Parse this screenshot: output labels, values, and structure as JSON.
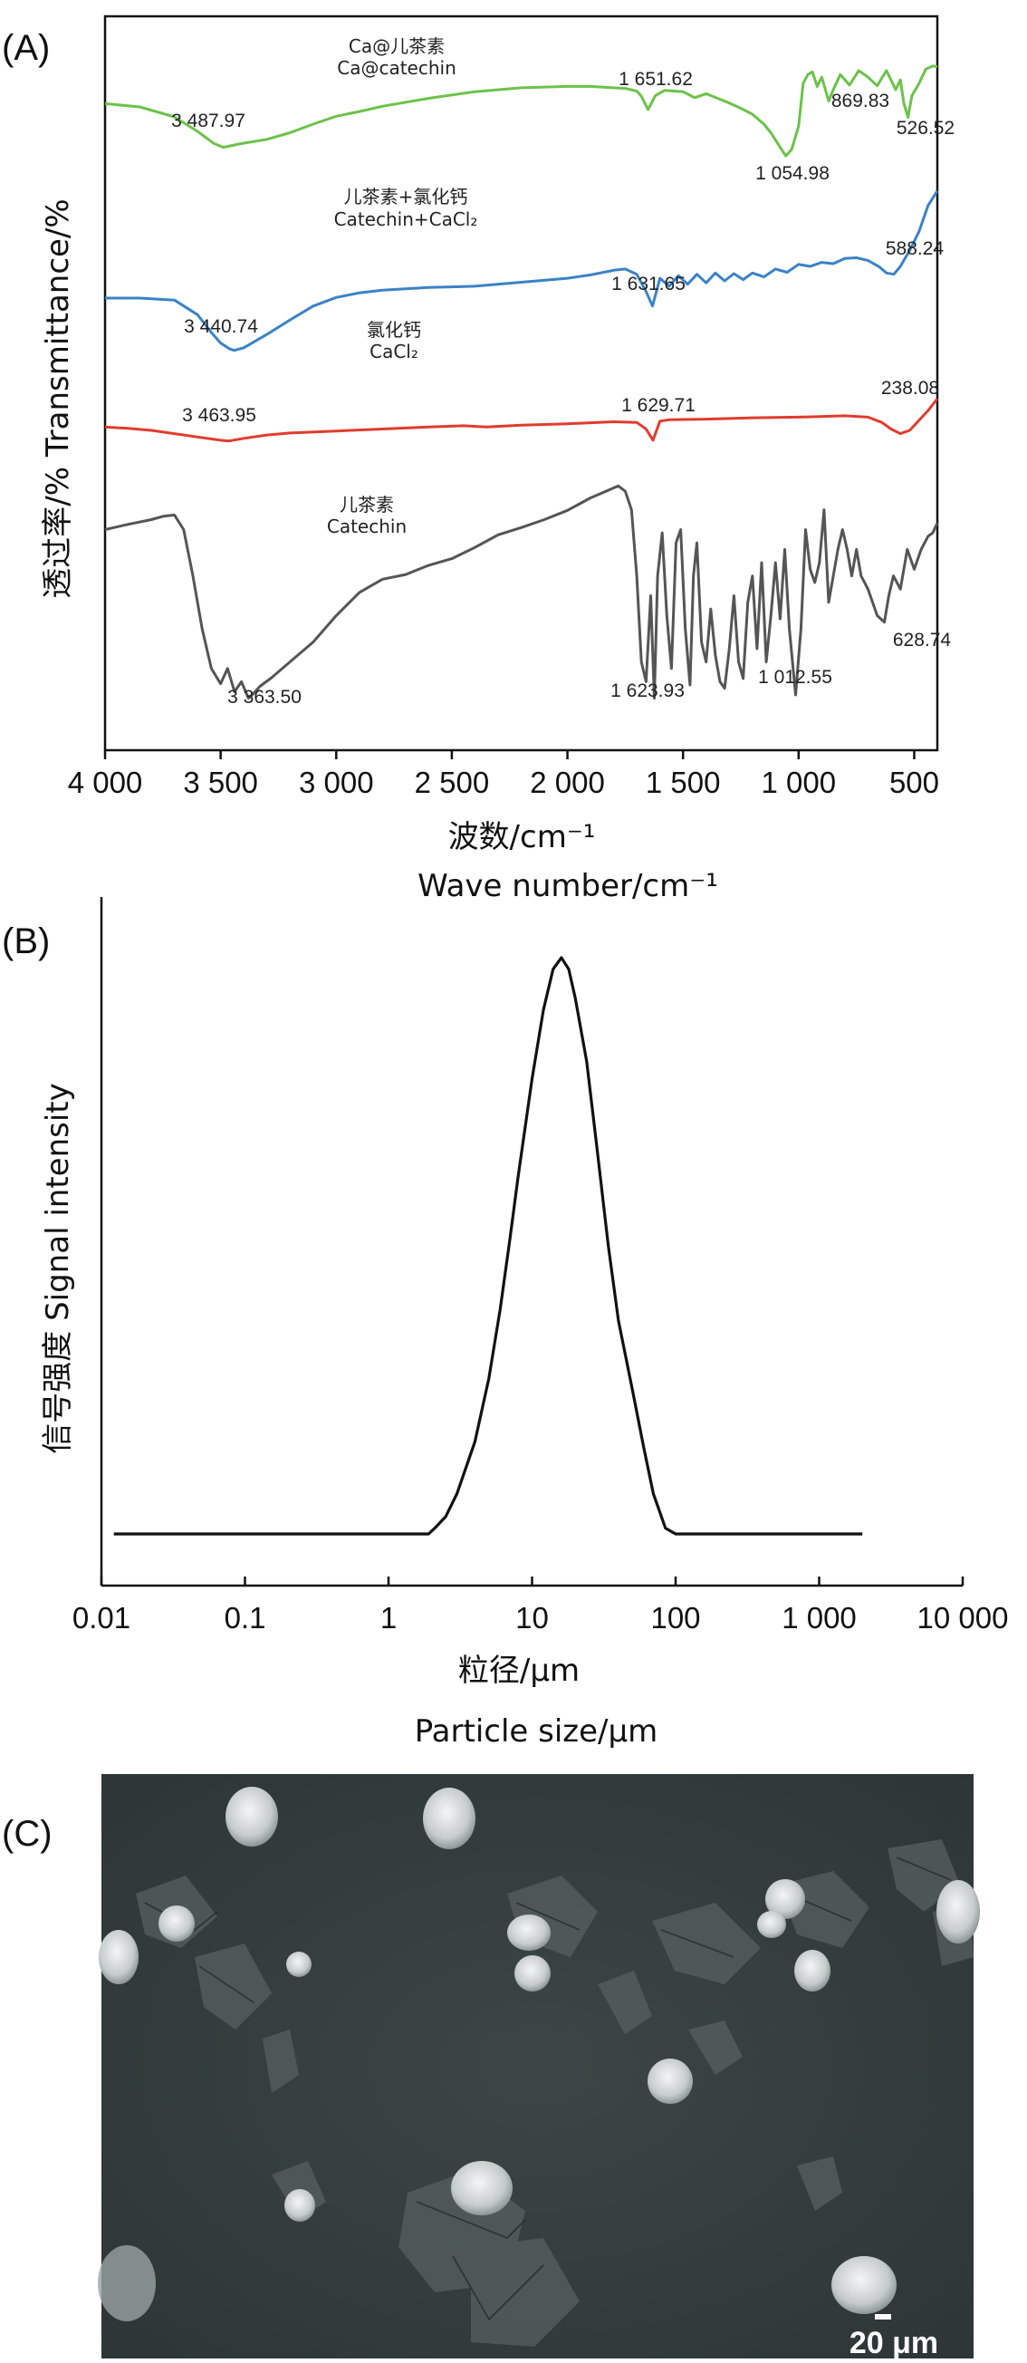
{
  "panels": {
    "a": "(A)",
    "b": "(B)",
    "c": "(C)"
  },
  "chart_data": [
    {
      "type": "line",
      "panel": "(A)",
      "xlabel_cn": "波数/cm⁻¹",
      "xlabel_en": "Wave number/cm⁻¹",
      "ylabel": "透过率/% Transmittance/%",
      "xlim": [
        4000,
        400
      ],
      "x_ticks": [
        {
          "v": 4000,
          "label": "4 000"
        },
        {
          "v": 3500,
          "label": "3 500"
        },
        {
          "v": 3000,
          "label": "3 000"
        },
        {
          "v": 2500,
          "label": "2 500"
        },
        {
          "v": 2000,
          "label": "2 000"
        },
        {
          "v": 1500,
          "label": "1 500"
        },
        {
          "v": 1000,
          "label": "1 000"
        },
        {
          "v": 500,
          "label": "500"
        }
      ],
      "grid": false,
      "series": [
        {
          "name_cn": "Ca@儿茶素",
          "name_en": "Ca@catechin",
          "color": "#6cc24a",
          "x": [
            4000,
            3850,
            3700,
            3600,
            3530,
            3488,
            3420,
            3300,
            3200,
            3100,
            3000,
            2900,
            2800,
            2600,
            2400,
            2200,
            2000,
            1900,
            1800,
            1750,
            1700,
            1680,
            1651,
            1620,
            1580,
            1500,
            1450,
            1400,
            1350,
            1300,
            1250,
            1200,
            1150,
            1120,
            1080,
            1055,
            1030,
            1000,
            980,
            960,
            940,
            920,
            900,
            870,
            850,
            820,
            780,
            740,
            700,
            660,
            620,
            580,
            560,
            545,
            527,
            510,
            480,
            450,
            420,
            400
          ],
          "y": [
            -0.6,
            -1.1,
            -2.6,
            -4.8,
            -6.6,
            -7.2,
            -6.7,
            -6.0,
            -5.0,
            -3.7,
            -2.5,
            -1.8,
            -1.0,
            0.2,
            1.2,
            1.8,
            2.0,
            2.0,
            1.8,
            1.7,
            1.3,
            0.5,
            -1.5,
            0.6,
            1.4,
            1.2,
            0.3,
            0.9,
            0.2,
            -0.5,
            -1.3,
            -2.2,
            -3.7,
            -5.0,
            -7.2,
            -8.5,
            -7.5,
            -4.0,
            2.5,
            3.8,
            4.2,
            2.0,
            3.4,
            -0.2,
            1.5,
            3.8,
            2.2,
            4.4,
            3.4,
            2.1,
            4.4,
            1.5,
            3.0,
            -0.5,
            -2.7,
            0.6,
            2.4,
            4.6,
            5.1,
            5.0
          ],
          "peaks": [
            {
              "x": 3488,
              "label": "3 487.97"
            },
            {
              "x": 1651,
              "label": "1 651.62"
            },
            {
              "x": 1055,
              "label": "1 054.98"
            },
            {
              "x": 870,
              "label": "869.83"
            },
            {
              "x": 527,
              "label": "526.52"
            }
          ]
        },
        {
          "name_cn": "儿茶素+氯化钙",
          "name_en": "Catechin+CaCl₂",
          "color": "#3b82c6",
          "x": [
            4000,
            3850,
            3700,
            3600,
            3540,
            3500,
            3460,
            3441,
            3400,
            3300,
            3200,
            3100,
            3000,
            2900,
            2800,
            2600,
            2400,
            2200,
            2000,
            1900,
            1800,
            1750,
            1700,
            1660,
            1632,
            1600,
            1560,
            1520,
            1480,
            1440,
            1400,
            1360,
            1320,
            1280,
            1240,
            1200,
            1150,
            1100,
            1050,
            1000,
            950,
            900,
            850,
            800,
            750,
            700,
            650,
            620,
            588,
            560,
            520,
            480,
            440,
            400
          ],
          "y": [
            -30.0,
            -30.0,
            -30.3,
            -32.5,
            -35.2,
            -36.8,
            -37.7,
            -37.9,
            -37.5,
            -35.5,
            -33.3,
            -31.2,
            -29.9,
            -29.2,
            -28.8,
            -28.4,
            -28.2,
            -27.6,
            -27.0,
            -26.5,
            -25.8,
            -25.6,
            -26.4,
            -29.0,
            -31.2,
            -27.0,
            -28.2,
            -26.6,
            -27.9,
            -26.4,
            -27.7,
            -26.2,
            -27.4,
            -26.3,
            -27.2,
            -26.2,
            -26.8,
            -25.6,
            -26.1,
            -24.9,
            -25.2,
            -24.6,
            -24.8,
            -24.0,
            -23.9,
            -24.3,
            -25.3,
            -26.2,
            -26.4,
            -25.2,
            -22.8,
            -20.0,
            -16.0,
            -13.8
          ],
          "peaks": [
            {
              "x": 3441,
              "label": "3 440.74"
            },
            {
              "x": 1632,
              "label": "1 631.65"
            },
            {
              "x": 588,
              "label": "588.24"
            }
          ]
        },
        {
          "name_cn": "氯化钙",
          "name_en": "CaCl₂",
          "color": "#e03c2e",
          "x": [
            4000,
            3900,
            3800,
            3700,
            3600,
            3500,
            3464,
            3400,
            3300,
            3200,
            3000,
            2800,
            2600,
            2450,
            2350,
            2200,
            2000,
            1800,
            1700,
            1660,
            1630,
            1600,
            1560,
            1400,
            1200,
            1000,
            800,
            700,
            640,
            600,
            560,
            520,
            480,
            440,
            400
          ],
          "y": [
            -49.5,
            -49.7,
            -50.0,
            -50.5,
            -51.0,
            -51.5,
            -51.6,
            -51.2,
            -50.7,
            -50.4,
            -50.1,
            -49.8,
            -49.5,
            -49.3,
            -49.5,
            -49.2,
            -49.0,
            -48.7,
            -48.8,
            -49.8,
            -51.5,
            -48.6,
            -48.4,
            -48.3,
            -48.1,
            -48.0,
            -47.8,
            -48.0,
            -48.8,
            -49.8,
            -50.5,
            -50.0,
            -48.5,
            -47.0,
            -45.2
          ],
          "peaks": [
            {
              "x": 3464,
              "label": "3 463.95"
            },
            {
              "x": 1630,
              "label": "1 629.71"
            },
            {
              "x": 238,
              "label": "238.08"
            }
          ]
        },
        {
          "name_cn": "儿茶素",
          "name_en": "Catechin",
          "color": "#555555",
          "x": [
            4000,
            3900,
            3800,
            3750,
            3700,
            3660,
            3620,
            3580,
            3540,
            3500,
            3470,
            3440,
            3410,
            3380,
            3364,
            3330,
            3280,
            3200,
            3100,
            3000,
            2900,
            2800,
            2700,
            2600,
            2500,
            2400,
            2300,
            2200,
            2100,
            2000,
            1900,
            1820,
            1780,
            1750,
            1723,
            1700,
            1680,
            1660,
            1640,
            1624,
            1610,
            1590,
            1570,
            1550,
            1530,
            1510,
            1490,
            1470,
            1455,
            1440,
            1420,
            1400,
            1380,
            1360,
            1340,
            1320,
            1300,
            1280,
            1260,
            1240,
            1220,
            1200,
            1180,
            1160,
            1140,
            1120,
            1100,
            1080,
            1060,
            1040,
            1013,
            990,
            970,
            950,
            930,
            910,
            890,
            870,
            850,
            830,
            810,
            790,
            770,
            750,
            730,
            700,
            680,
            660,
            645,
            629,
            610,
            590,
            560,
            530,
            500,
            470,
            440,
            420,
            400
          ],
          "y": [
            -65.0,
            -64.2,
            -63.5,
            -63.0,
            -62.8,
            -65.0,
            -72.0,
            -80.0,
            -86.0,
            -88.3,
            -86.0,
            -89.5,
            -88.0,
            -90.5,
            -90.0,
            -88.7,
            -87.4,
            -85.0,
            -82.0,
            -78.0,
            -74.5,
            -72.5,
            -71.8,
            -70.4,
            -69.4,
            -67.7,
            -65.8,
            -64.7,
            -63.5,
            -62.1,
            -60.2,
            -59.0,
            -58.4,
            -59.2,
            -62.0,
            -72.0,
            -85.0,
            -88.0,
            -75.0,
            -90.5,
            -72.0,
            -65.5,
            -78.0,
            -86.0,
            -67.0,
            -65.0,
            -80.0,
            -88.5,
            -72.0,
            -67.0,
            -82.0,
            -85.0,
            -77.0,
            -84.0,
            -88.0,
            -89.0,
            -83.0,
            -75.0,
            -85.0,
            -87.5,
            -76.0,
            -72.0,
            -83.0,
            -70.0,
            -85.0,
            -78.0,
            -70.0,
            -78.5,
            -68.0,
            -80.0,
            -90.0,
            -80.0,
            -65.0,
            -71.0,
            -73.0,
            -70.0,
            -62.0,
            -76.0,
            -72.0,
            -68.0,
            -65.0,
            -68.0,
            -72.0,
            -68.0,
            -72.0,
            -74.0,
            -76.0,
            -78.0,
            -78.5,
            -79.0,
            -75.0,
            -72.0,
            -74.0,
            -68.0,
            -71.0,
            -68.0,
            -66.0,
            -65.5,
            -64.0
          ],
          "peaks": [
            {
              "x": 3364,
              "label": "3 363.50"
            },
            {
              "x": 1624,
              "label": "1 623.93"
            },
            {
              "x": 1013,
              "label": "1 012.55"
            },
            {
              "x": 629,
              "label": "628.74"
            }
          ]
        }
      ]
    },
    {
      "type": "line",
      "panel": "(B)",
      "xlabel_cn": "粒径/μm",
      "xlabel_en": "Particle size/μm",
      "ylabel": "信号强度 Signal intensity",
      "xscale": "log",
      "xlim": [
        0.01,
        10000
      ],
      "x_ticks": [
        {
          "v": 0.01,
          "label": "0.01"
        },
        {
          "v": 0.1,
          "label": "0.1"
        },
        {
          "v": 1,
          "label": "1"
        },
        {
          "v": 10,
          "label": "10"
        },
        {
          "v": 100,
          "label": "100"
        },
        {
          "v": 1000,
          "label": "1 000"
        },
        {
          "v": 10000,
          "label": "10 000"
        }
      ],
      "grid": false,
      "series": [
        {
          "color": "#111111",
          "x": [
            0.0122,
            1.9,
            2.1,
            2.5,
            3,
            4,
            5,
            6,
            7,
            8,
            10,
            12,
            14,
            16,
            18,
            20,
            24,
            28,
            34,
            40,
            50,
            60,
            70,
            85,
            100,
            2000
          ],
          "y": [
            0,
            0,
            0.01,
            0.03,
            0.07,
            0.16,
            0.27,
            0.39,
            0.51,
            0.62,
            0.79,
            0.91,
            0.98,
            1.0,
            0.98,
            0.93,
            0.82,
            0.68,
            0.5,
            0.37,
            0.25,
            0.15,
            0.07,
            0.01,
            0,
            0
          ]
        }
      ]
    }
  ],
  "micrograph": {
    "scale_bar_label": "20 μm"
  }
}
